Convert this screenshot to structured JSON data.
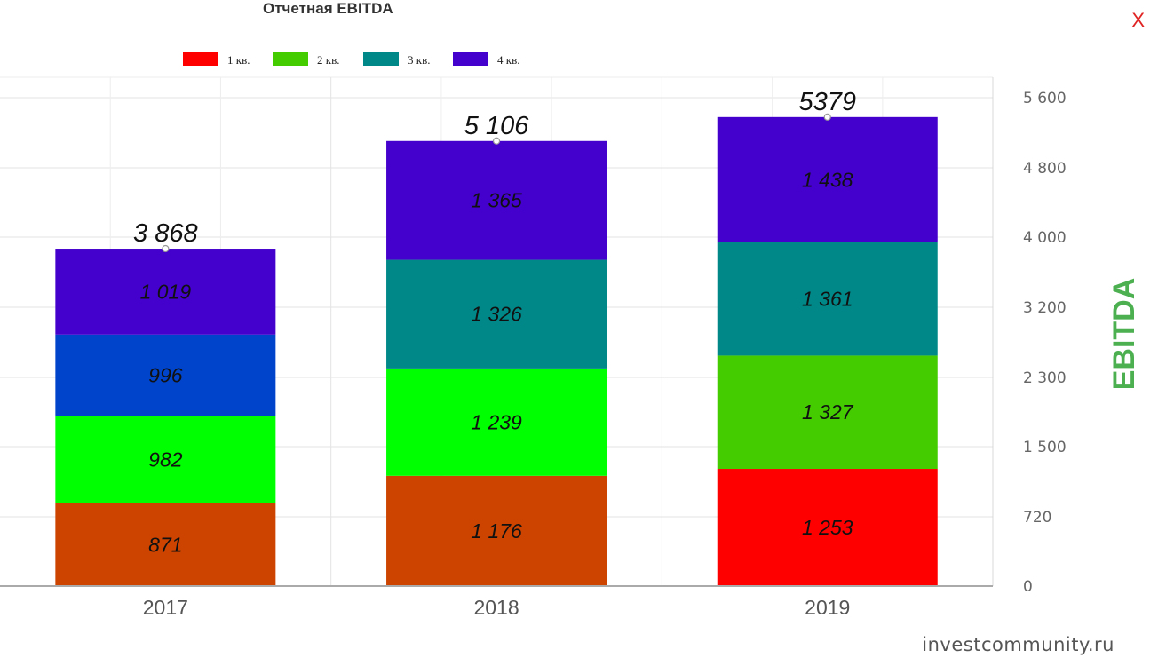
{
  "header": {
    "title": "Отчетная EBITDA",
    "close_label": "X"
  },
  "legend": [
    {
      "label": "1 кв.",
      "color": "#ff0000"
    },
    {
      "label": "2 кв.",
      "color": "#44cc00"
    },
    {
      "label": "3 кв.",
      "color": "#008888"
    },
    {
      "label": "4 кв.",
      "color": "#4400cc"
    }
  ],
  "watermark": "investcommunity.ru",
  "chart_data": {
    "type": "bar",
    "stacked": true,
    "title": "Отчетная EBITDA",
    "ylabel": "EBITDA",
    "xlabel": "",
    "categories": [
      "2017",
      "2018",
      "2019"
    ],
    "series": [
      {
        "name": "1 кв.",
        "values": [
          871,
          1176,
          1253
        ],
        "value_labels": [
          "871",
          "1 176",
          "1 253"
        ],
        "colors": [
          "#cc4400",
          "#cc4400",
          "#ff0000"
        ]
      },
      {
        "name": "2 кв.",
        "values": [
          982,
          1239,
          1327
        ],
        "value_labels": [
          "982",
          "1 239",
          "1 327"
        ],
        "colors": [
          "#00ff00",
          "#00ff00",
          "#44cc00"
        ]
      },
      {
        "name": "3 кв.",
        "values": [
          996,
          1326,
          1361
        ],
        "value_labels": [
          "996",
          "1 326",
          "1 361"
        ],
        "colors": [
          "#0044cc",
          "#008888",
          "#008888"
        ]
      },
      {
        "name": "4 кв.",
        "values": [
          1019,
          1365,
          1438
        ],
        "value_labels": [
          "1 019",
          "1 365",
          "1 438"
        ],
        "colors": [
          "#4400cc",
          "#4400cc",
          "#4400cc"
        ]
      }
    ],
    "totals": [
      3868,
      5106,
      5379
    ],
    "total_labels": [
      "3 868",
      "5 106",
      "5379"
    ],
    "y_ticks": [
      {
        "label": "0",
        "value": 0
      },
      {
        "label": "720",
        "value": 720
      },
      {
        "label": "1 500",
        "value": 1500
      },
      {
        "label": "2 300",
        "value": 2300
      },
      {
        "label": "3 200",
        "value": 3200
      },
      {
        "label": "4 000",
        "value": 4000
      },
      {
        "label": "4 800",
        "value": 4800
      },
      {
        "label": "5 600",
        "value": 5600
      }
    ],
    "ylim": [
      0,
      5600
    ],
    "y_axis_position": "right",
    "grid": true,
    "legend_position": "top"
  }
}
